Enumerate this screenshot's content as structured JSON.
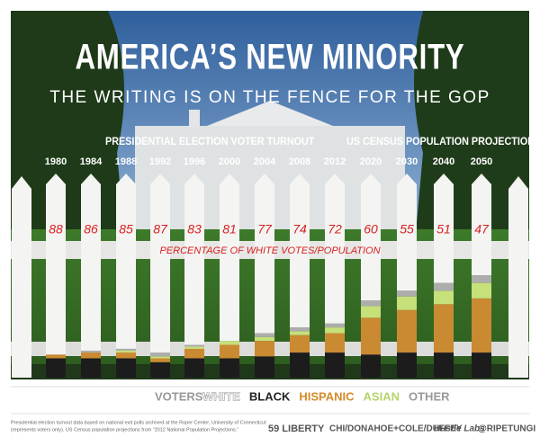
{
  "chart_data": {
    "type": "stacked-bar",
    "title": "AMERICA’S NEW MINORITY",
    "subtitle": "THE WRITING IS ON THE FENCE FOR THE GOP",
    "annotations": [
      "PRESIDENTIAL ELECTION VOTER TURNOUT",
      "US CENSUS POPULATION PROJECTIONS",
      "PERCENTAGE OF WHITE VOTES/POPULATION"
    ],
    "categories": [
      "1980",
      "1984",
      "1988",
      "1992",
      "1996",
      "2000",
      "2004",
      "2008",
      "2012",
      "2020",
      "2030",
      "2040",
      "2050"
    ],
    "legend_title": "VOTERS:",
    "series": [
      {
        "name": "WHITE",
        "color": "#f4f4f2",
        "values": [
          88,
          86,
          85,
          87,
          83,
          81,
          77,
          74,
          72,
          60,
          55,
          51,
          47
        ]
      },
      {
        "name": "BLACK",
        "color": "#1c1c1c",
        "values": [
          10,
          10,
          10,
          8,
          10,
          10,
          11,
          13,
          13,
          12,
          13,
          13,
          13
        ]
      },
      {
        "name": "HISPANIC",
        "color": "#c98a32",
        "values": [
          2,
          3,
          3,
          2,
          5,
          7,
          8,
          9,
          10,
          19,
          22,
          25,
          28
        ]
      },
      {
        "name": "ASIAN",
        "color": "#c6e07a",
        "values": [
          0,
          0,
          1,
          1,
          1,
          2,
          2,
          2,
          3,
          6,
          7,
          7,
          8
        ]
      },
      {
        "name": "OTHER",
        "color": "#adadab",
        "values": [
          0,
          1,
          1,
          2,
          1,
          0,
          2,
          2,
          2,
          3,
          3,
          4,
          4
        ]
      }
    ],
    "ylim": [
      0,
      100
    ],
    "notes": [
      "Presidential election turnout data based on national exit polls archived at the Roper Center, University of Connecticut",
      "(represents voters only). US Census population projections from “2012 National Population Projections.”"
    ],
    "credits": [
      "59 LIBERTY",
      "CHI/DONAHOE+COLE/DUFFEY",
      "Hustle Labs",
      "@RIPETUNGI"
    ]
  }
}
